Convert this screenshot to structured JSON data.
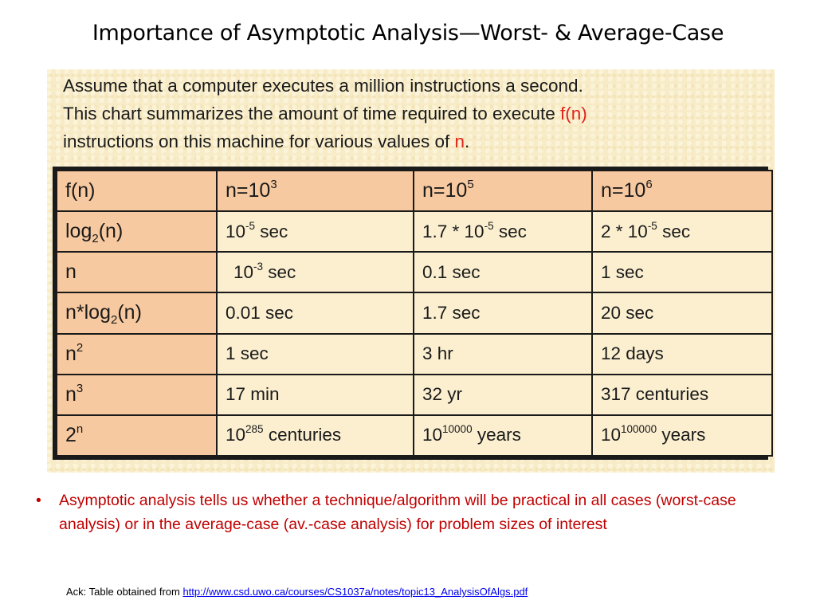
{
  "slide": {
    "title": "Importance of Asymptotic Analysis—Worst- & Average-Case"
  },
  "intro": {
    "line1": "Assume that a computer executes a million instructions a second.",
    "line2_pre": "This chart summarizes the amount of time required to execute ",
    "line2_red": "f(n)",
    "line3_pre": "instructions on this machine for various values of ",
    "line3_red": "n",
    "line3_post": "."
  },
  "table": {
    "header": {
      "fn": "f(n)",
      "c1_base": "n=10",
      "c1_exp": "3",
      "c2_base": "n=10",
      "c2_exp": "5",
      "c3_base": "n=10",
      "c3_exp": "6"
    },
    "rows": [
      {
        "fn_a": "log",
        "fn_sub": "2",
        "fn_b": "(n)",
        "v1_a": "10",
        "v1_sup": "-5",
        "v1_b": " sec",
        "v2_a": "1.7 * 10",
        "v2_sup": "-5",
        "v2_b": " sec",
        "v3_a": "2 * 10",
        "v3_sup": "-5",
        "v3_b": " sec"
      },
      {
        "fn": "n",
        "v1_a": "10",
        "v1_sup": "-3",
        "v1_b": " sec",
        "v2": "0.1 sec",
        "v3": "1 sec"
      },
      {
        "fn_a": "n*log",
        "fn_sub": "2",
        "fn_b": "(n)",
        "v1": "0.01 sec",
        "v2": "1.7 sec",
        "v3": "20 sec"
      },
      {
        "fn_a": "n",
        "fn_sup": "2",
        "v1": "1 sec",
        "v2": "3 hr",
        "v3": "12 days"
      },
      {
        "fn_a": "n",
        "fn_sup": "3",
        "v1": "17 min",
        "v2": "32 yr",
        "v3": "317 centuries"
      },
      {
        "fn_a": "2",
        "fn_sup": "n",
        "v1_a": "10",
        "v1_sup": "285",
        "v1_b": " centuries",
        "v2_a": "10",
        "v2_sup": "10000",
        "v2_b": " years",
        "v3_a": "10",
        "v3_sup": "100000",
        "v3_b": " years"
      }
    ]
  },
  "bullet": {
    "marker": "•",
    "text": "Asymptotic analysis tells  us whether a technique/algorithm will be practical in all cases (worst-case analysis) or in the average-case (av.-case analysis) for problem sizes of interest"
  },
  "ack": {
    "label": "Ack: Table obtained from ",
    "link": "http://www.csd.uwo.ca/courses/CS1037a/notes/topic13_AnalysisOfAlgs.pdf"
  },
  "colors": {
    "panel_bg": "#f8ecc8",
    "header_bg": "#f7c9a0",
    "cell_bg": "#fbefd0",
    "accent_red": "#e2241b",
    "bullet_red": "#c00000",
    "link_blue": "#0000ee"
  }
}
